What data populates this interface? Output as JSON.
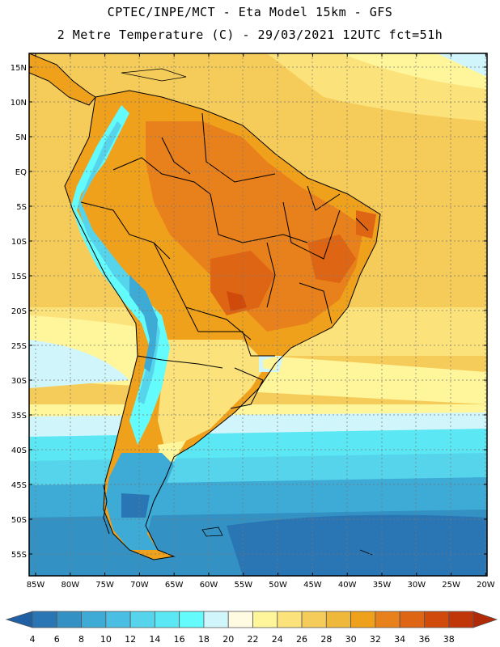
{
  "header": {
    "line1": "CPTEC/INPE/MCT -  Eta Model 15km - GFS",
    "line2": "2 Metre Temperature (C) - 29/03/2021 12UTC fct=51h"
  },
  "map": {
    "lat_labels": [
      "15N",
      "10N",
      "5N",
      "EQ",
      "5S",
      "10S",
      "15S",
      "20S",
      "25S",
      "30S",
      "35S",
      "40S",
      "45S",
      "50S",
      "55S"
    ],
    "lon_labels": [
      "85W",
      "80W",
      "75W",
      "70W",
      "65W",
      "60W",
      "55W",
      "50W",
      "45W",
      "40W",
      "35W",
      "30W",
      "25W",
      "20W"
    ]
  },
  "colorbar": {
    "labels": [
      "4",
      "6",
      "8",
      "10",
      "12",
      "14",
      "16",
      "18",
      "20",
      "22",
      "24",
      "26",
      "28",
      "30",
      "32",
      "34",
      "36",
      "38"
    ],
    "colors": [
      "#1f5fa3",
      "#2a76b5",
      "#3391c4",
      "#3eaad6",
      "#4bbfe3",
      "#56d4ec",
      "#5be8f4",
      "#63fbfb",
      "#d0f6fc",
      "#fffbe3",
      "#fff59a",
      "#fbe27a",
      "#f5cc5a",
      "#efb83a",
      "#f0a11b",
      "#e8801c",
      "#de6514",
      "#d04a0b",
      "#c03608",
      "#b02a07"
    ]
  }
}
